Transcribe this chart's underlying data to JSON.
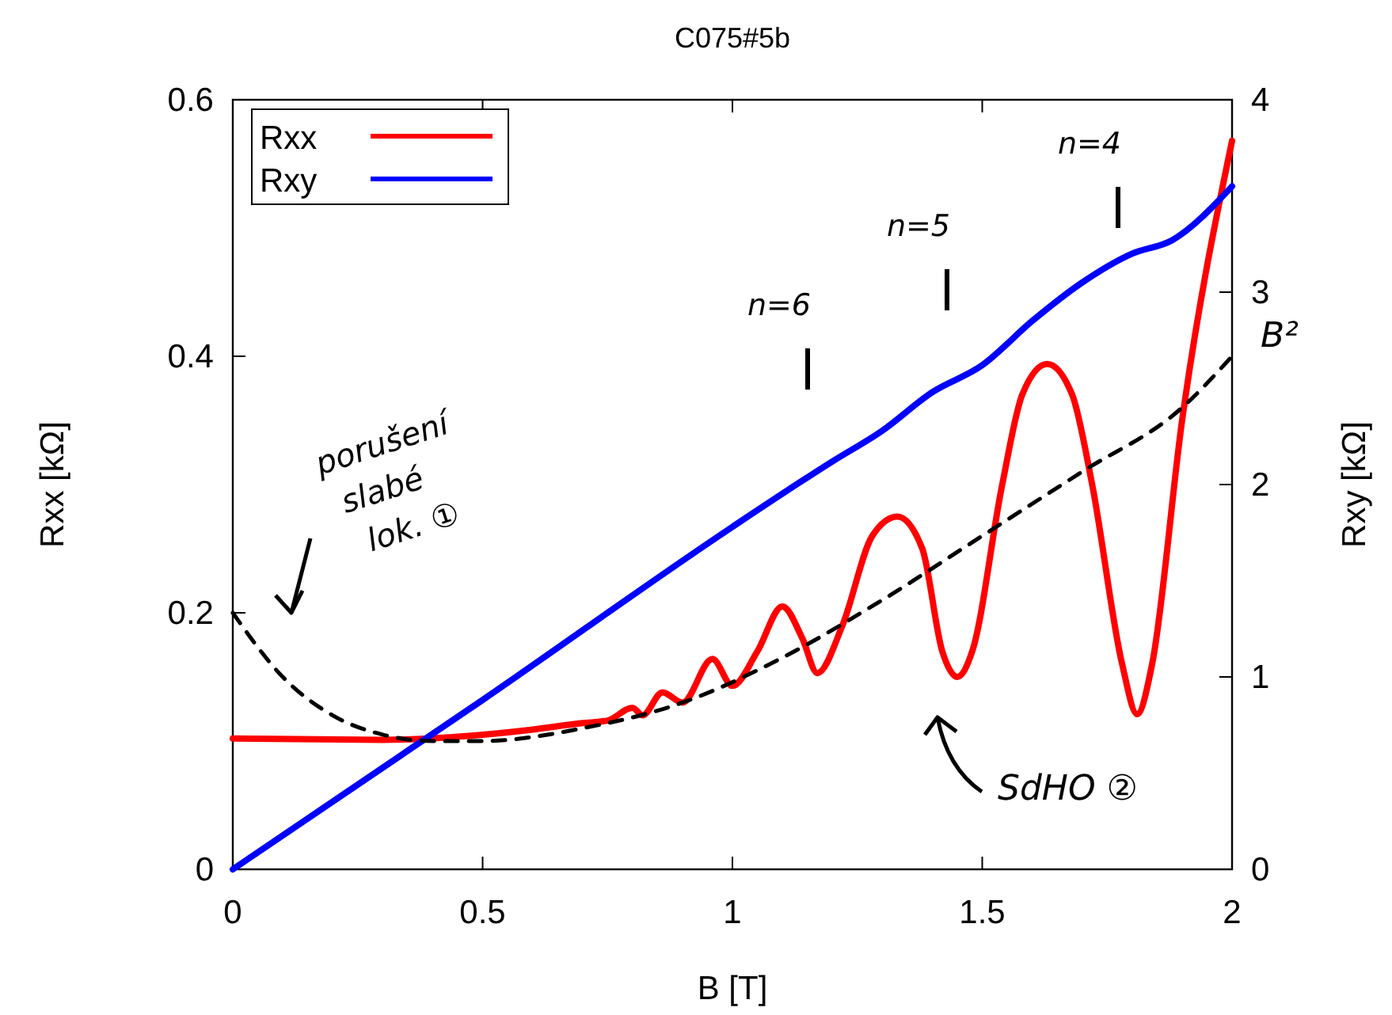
{
  "chart_data": {
    "type": "line",
    "title": "C075#5b",
    "xlabel": "B [T]",
    "ylabel": "Rxx [kΩ]",
    "y2label": "Rxy [kΩ]",
    "xlim": [
      0,
      2
    ],
    "xticks": [
      0,
      0.5,
      1,
      1.5,
      2
    ],
    "ylim": [
      0,
      0.6
    ],
    "yticks": [
      0,
      0.2,
      0.4,
      0.6
    ],
    "y2lim": [
      0,
      4
    ],
    "y2ticks": [
      0,
      1,
      2,
      3,
      4
    ],
    "legend": "top left",
    "grid": false,
    "series": [
      {
        "name": "Rxx",
        "color": "#ff0000",
        "x": [
          0,
          0.3,
          0.5,
          0.6,
          0.7,
          0.75,
          0.8,
          0.82,
          0.86,
          0.9,
          0.96,
          1.0,
          1.05,
          1.1,
          1.14,
          1.17,
          1.22,
          1.28,
          1.33,
          1.38,
          1.42,
          1.45,
          1.48,
          1.54,
          1.58,
          1.63,
          1.68,
          1.72,
          1.78,
          1.81,
          1.84,
          1.9,
          2.0
        ],
        "values": [
          0.102,
          0.101,
          0.105,
          0.109,
          0.114,
          0.116,
          0.126,
          0.12,
          0.138,
          0.13,
          0.164,
          0.143,
          0.17,
          0.205,
          0.18,
          0.153,
          0.19,
          0.26,
          0.275,
          0.25,
          0.17,
          0.15,
          0.17,
          0.3,
          0.37,
          0.394,
          0.37,
          0.3,
          0.16,
          0.121,
          0.16,
          0.35,
          0.568
        ]
      },
      {
        "name": "Rxy",
        "color": "#0000ff",
        "axis": "y2",
        "x": [
          0,
          0.5,
          1.0,
          1.2,
          1.3,
          1.4,
          1.5,
          1.6,
          1.7,
          1.8,
          1.88,
          2.0
        ],
        "values": [
          0,
          0.88,
          1.78,
          2.12,
          2.28,
          2.48,
          2.62,
          2.85,
          3.05,
          3.2,
          3.27,
          3.55
        ]
      },
      {
        "color": "#000000",
        "line_style": "dashed",
        "x": [
          0,
          0.1,
          0.2,
          0.3,
          0.4,
          0.5,
          0.7,
          0.9,
          1.1,
          1.3,
          1.5,
          1.7,
          1.9,
          2.0
        ],
        "values": [
          0.2,
          0.15,
          0.12,
          0.105,
          0.1,
          0.1,
          0.11,
          0.13,
          0.165,
          0.21,
          0.26,
          0.31,
          0.36,
          0.4
        ]
      }
    ],
    "annotations": [
      "n=6",
      "n=5",
      "n=4",
      {
        "text": "B²",
        "x": 2,
        "y": 0.4
      },
      "porušení slabé lok. ①",
      "SdHO ②"
    ]
  }
}
